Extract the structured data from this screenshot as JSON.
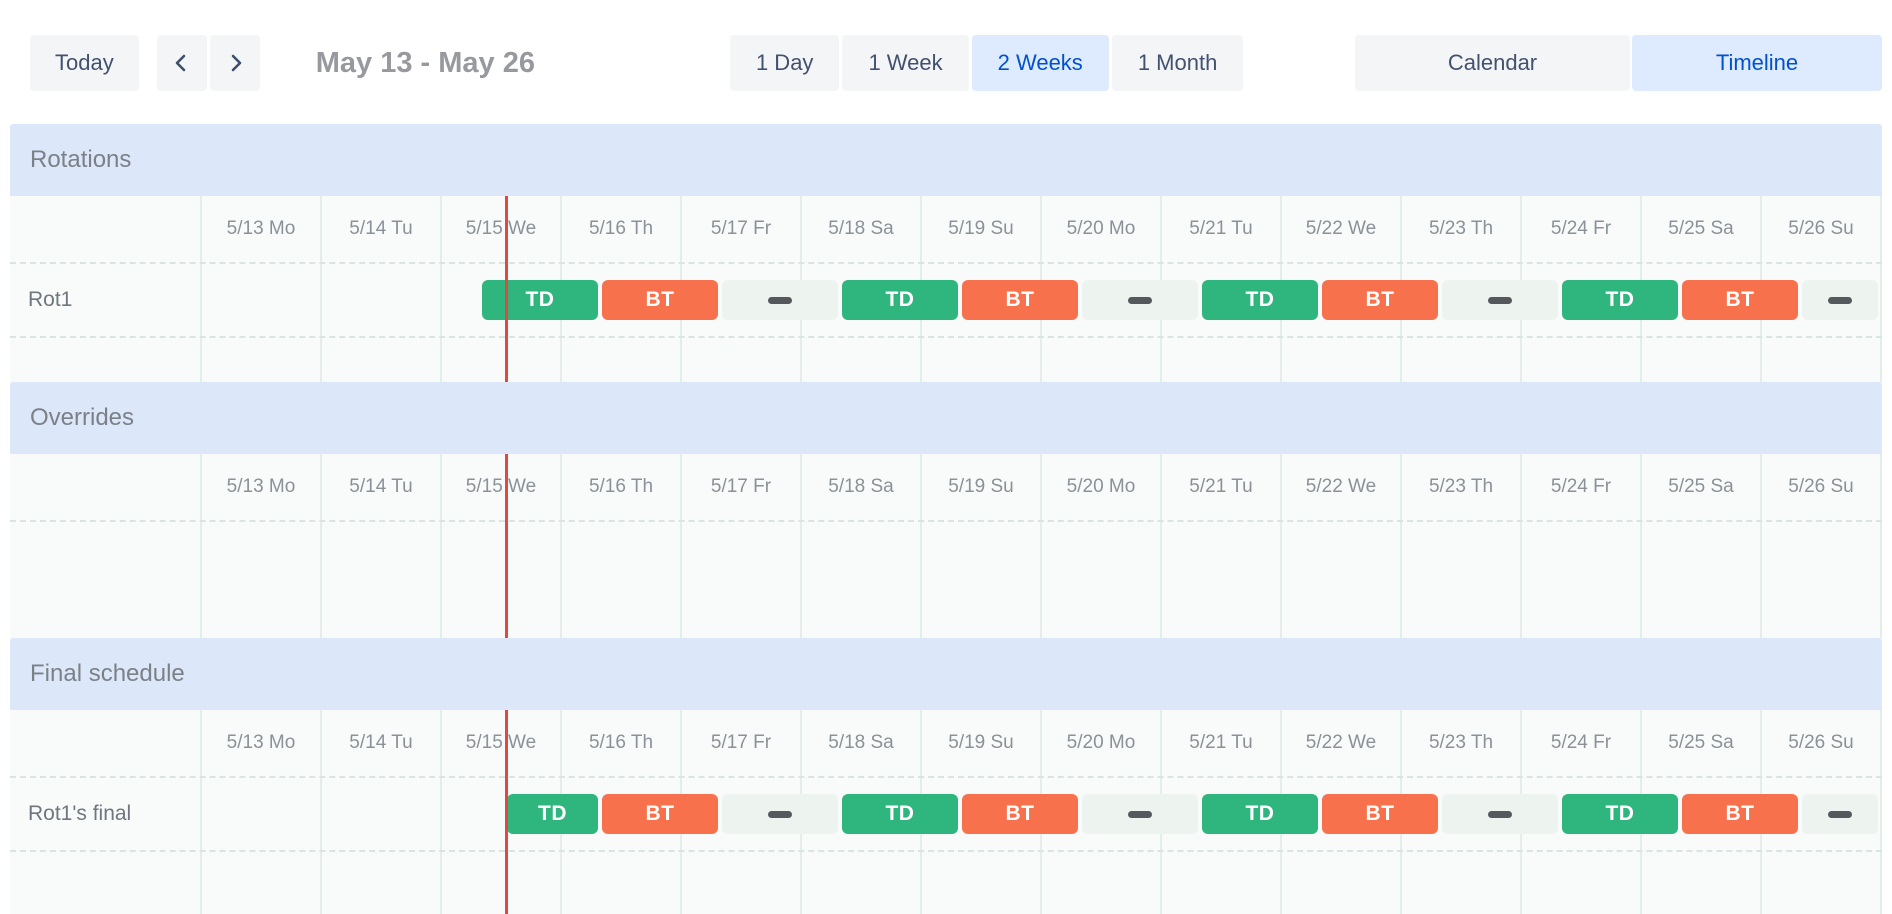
{
  "toolbar": {
    "today_label": "Today",
    "prev_button_icon": "chevron-left",
    "next_button_icon": "chevron-right",
    "date_range": "May 13 - May 26",
    "view_buttons": [
      {
        "label": "1 Day",
        "selected": false
      },
      {
        "label": "1 Week",
        "selected": false
      },
      {
        "label": "2 Weeks",
        "selected": true
      },
      {
        "label": "1 Month",
        "selected": false
      }
    ],
    "mode_buttons": [
      {
        "label": "Calendar",
        "selected": false
      },
      {
        "label": "Timeline",
        "selected": true
      }
    ]
  },
  "timeline": {
    "day_labels": [
      "5/13 Mo",
      "5/14 Tu",
      "5/15 We",
      "5/16 Th",
      "5/17 Fr",
      "5/18 Sa",
      "5/19 Su",
      "5/20 Mo",
      "5/21 Tu",
      "5/22 We",
      "5/23 Th",
      "5/24 Fr",
      "5/25 Sa",
      "5/26 Su"
    ],
    "now_marker": {
      "day_index": 2,
      "hour": 13,
      "within_day_label": "5/15 We"
    }
  },
  "colors": {
    "shift_td": "#2FB57E",
    "shift_bt": "#F7714C",
    "gap_bar_bg": "#EDF3EF",
    "gap_dash": "#55595E",
    "now_line": "#E2483D",
    "button_bg": "#F4F5F7",
    "button_text": "#42526E",
    "selected_button_bg": "#DEEBFF",
    "selected_button_text": "#0052CC",
    "section_header_bg": "#DCE7FA"
  },
  "sections": [
    {
      "title": "Rotations",
      "rows": [
        {
          "label": "Rot1",
          "bars": [
            {
              "kind": "td",
              "label": "TD",
              "start": {
                "day": 2,
                "hour": 8
              },
              "end": {
                "day": 3,
                "hour": 8
              }
            },
            {
              "kind": "bt",
              "label": "BT",
              "start": {
                "day": 3,
                "hour": 8
              },
              "end": {
                "day": 4,
                "hour": 8
              }
            },
            {
              "kind": "gap",
              "label": "",
              "start": {
                "day": 4,
                "hour": 8
              },
              "end": {
                "day": 5,
                "hour": 8
              }
            },
            {
              "kind": "td",
              "label": "TD",
              "start": {
                "day": 5,
                "hour": 8
              },
              "end": {
                "day": 6,
                "hour": 8
              }
            },
            {
              "kind": "bt",
              "label": "BT",
              "start": {
                "day": 6,
                "hour": 8
              },
              "end": {
                "day": 7,
                "hour": 8
              }
            },
            {
              "kind": "gap",
              "label": "",
              "start": {
                "day": 7,
                "hour": 8
              },
              "end": {
                "day": 8,
                "hour": 8
              }
            },
            {
              "kind": "td",
              "label": "TD",
              "start": {
                "day": 8,
                "hour": 8
              },
              "end": {
                "day": 9,
                "hour": 8
              }
            },
            {
              "kind": "bt",
              "label": "BT",
              "start": {
                "day": 9,
                "hour": 8
              },
              "end": {
                "day": 10,
                "hour": 8
              }
            },
            {
              "kind": "gap",
              "label": "",
              "start": {
                "day": 10,
                "hour": 8
              },
              "end": {
                "day": 11,
                "hour": 8
              }
            },
            {
              "kind": "td",
              "label": "TD",
              "start": {
                "day": 11,
                "hour": 8
              },
              "end": {
                "day": 12,
                "hour": 8
              }
            },
            {
              "kind": "bt",
              "label": "BT",
              "start": {
                "day": 12,
                "hour": 8
              },
              "end": {
                "day": 13,
                "hour": 8
              }
            },
            {
              "kind": "gap",
              "label": "",
              "start": {
                "day": 13,
                "hour": 8
              },
              "end": {
                "day": 14,
                "hour": 0
              }
            }
          ]
        }
      ]
    },
    {
      "title": "Overrides",
      "rows": []
    },
    {
      "title": "Final schedule",
      "rows": [
        {
          "label": "Rot1's final",
          "bars": [
            {
              "kind": "td",
              "label": "TD",
              "start": {
                "day": 2,
                "hour": 13
              },
              "end": {
                "day": 3,
                "hour": 8
              }
            },
            {
              "kind": "bt",
              "label": "BT",
              "start": {
                "day": 3,
                "hour": 8
              },
              "end": {
                "day": 4,
                "hour": 8
              }
            },
            {
              "kind": "gap",
              "label": "",
              "start": {
                "day": 4,
                "hour": 8
              },
              "end": {
                "day": 5,
                "hour": 8
              }
            },
            {
              "kind": "td",
              "label": "TD",
              "start": {
                "day": 5,
                "hour": 8
              },
              "end": {
                "day": 6,
                "hour": 8
              }
            },
            {
              "kind": "bt",
              "label": "BT",
              "start": {
                "day": 6,
                "hour": 8
              },
              "end": {
                "day": 7,
                "hour": 8
              }
            },
            {
              "kind": "gap",
              "label": "",
              "start": {
                "day": 7,
                "hour": 8
              },
              "end": {
                "day": 8,
                "hour": 8
              }
            },
            {
              "kind": "td",
              "label": "TD",
              "start": {
                "day": 8,
                "hour": 8
              },
              "end": {
                "day": 9,
                "hour": 8
              }
            },
            {
              "kind": "bt",
              "label": "BT",
              "start": {
                "day": 9,
                "hour": 8
              },
              "end": {
                "day": 10,
                "hour": 8
              }
            },
            {
              "kind": "gap",
              "label": "",
              "start": {
                "day": 10,
                "hour": 8
              },
              "end": {
                "day": 11,
                "hour": 8
              }
            },
            {
              "kind": "td",
              "label": "TD",
              "start": {
                "day": 11,
                "hour": 8
              },
              "end": {
                "day": 12,
                "hour": 8
              }
            },
            {
              "kind": "bt",
              "label": "BT",
              "start": {
                "day": 12,
                "hour": 8
              },
              "end": {
                "day": 13,
                "hour": 8
              }
            },
            {
              "kind": "gap",
              "label": "",
              "start": {
                "day": 13,
                "hour": 8
              },
              "end": {
                "day": 14,
                "hour": 0
              }
            }
          ]
        }
      ]
    }
  ]
}
